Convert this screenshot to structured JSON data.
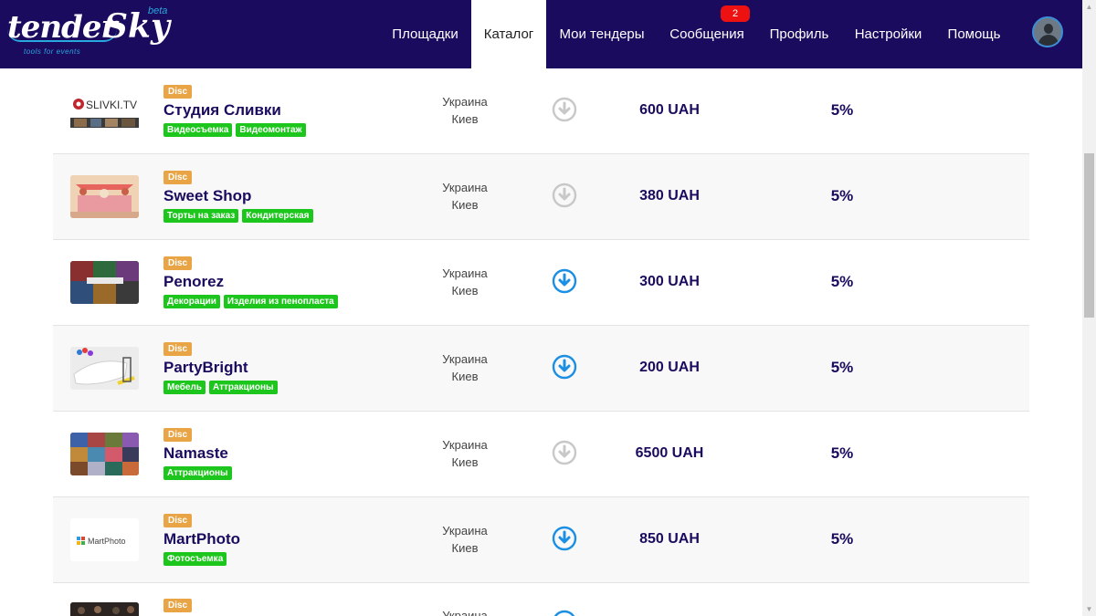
{
  "header": {
    "logo_text_1": "tender",
    "logo_text_2": "Sky",
    "logo_beta": "beta",
    "logo_tagline": "tools for events",
    "nav": [
      {
        "label": "Площадки"
      },
      {
        "label": "Каталог"
      },
      {
        "label": "Мои тендеры"
      },
      {
        "label": "Сообщения",
        "badge": "2"
      },
      {
        "label": "Профиль"
      },
      {
        "label": "Настройки"
      },
      {
        "label": "Помощь"
      }
    ],
    "active_tab": "Каталог"
  },
  "list": {
    "rows": [
      {
        "discount_label": "Disc",
        "name": "Студия Сливки",
        "tags": [
          "Видеосъемка",
          "Видеомонтаж"
        ],
        "country": "Украина",
        "city": "Киев",
        "price": "600 UAH",
        "percent": "5%",
        "download_enabled": false,
        "thumb_text": "SLIVKI.TV"
      },
      {
        "discount_label": "Disc",
        "name": "Sweet Shop",
        "tags": [
          "Торты на заказ",
          "Кондитерская"
        ],
        "country": "Украина",
        "city": "Киев",
        "price": "380 UAH",
        "percent": "5%",
        "download_enabled": false
      },
      {
        "discount_label": "Disc",
        "name": "Penorez",
        "tags": [
          "Декорации",
          "Изделия из пенопласта"
        ],
        "country": "Украина",
        "city": "Киев",
        "price": "300 UAH",
        "percent": "5%",
        "download_enabled": true
      },
      {
        "discount_label": "Disc",
        "name": "PartyBright",
        "tags": [
          "Мебель",
          "Аттракционы"
        ],
        "country": "Украина",
        "city": "Киев",
        "price": "200 UAH",
        "percent": "5%",
        "download_enabled": true
      },
      {
        "discount_label": "Disc",
        "name": "Namaste",
        "tags": [
          "Аттракционы"
        ],
        "country": "Украина",
        "city": "Киев",
        "price": "6500 UAH",
        "percent": "5%",
        "download_enabled": false
      },
      {
        "discount_label": "Disc",
        "name": "MartPhoto",
        "tags": [
          "Фотосъемка"
        ],
        "country": "Украина",
        "city": "Киев",
        "price": "850 UAH",
        "percent": "5%",
        "download_enabled": true,
        "thumb_text": "MartPhoto"
      },
      {
        "discount_label": "Disc",
        "name": "",
        "tags": [],
        "country": "Украина",
        "city": "",
        "price": "",
        "percent": "",
        "download_enabled": true
      }
    ]
  },
  "colors": {
    "header_bg": "#1b0b5e",
    "accent_blue": "#1a8fe3",
    "tag_green": "#1cc61c",
    "disc_orange": "#e8a445",
    "badge_red": "#ee1111",
    "disabled_gray": "#c8c8c8"
  },
  "icons": {
    "download_enabled": "download-circle-icon",
    "download_disabled": "download-circle-disabled-icon",
    "avatar": "user-avatar-icon",
    "scroll_up": "scroll-up-arrow-icon",
    "scroll_down": "scroll-down-arrow-icon"
  }
}
